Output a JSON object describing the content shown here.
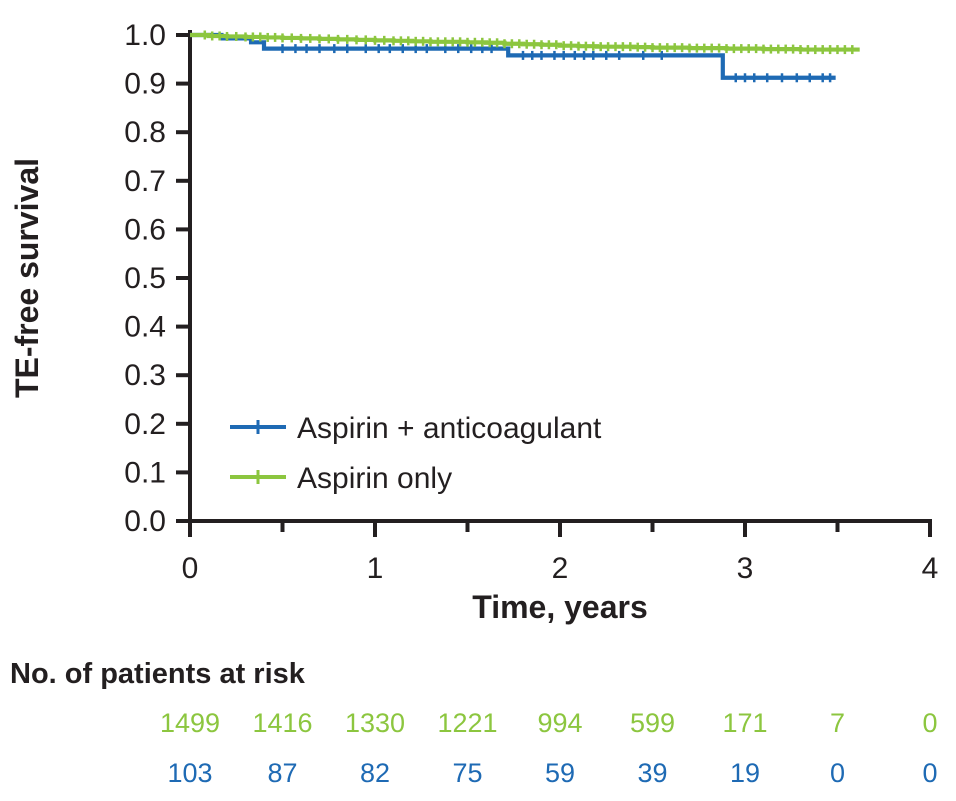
{
  "chart_data": {
    "type": "line",
    "subtype": "kaplan-meier-step",
    "title": "",
    "xlabel": "Time, years",
    "ylabel": "TE-free survival",
    "xlim": [
      0,
      4
    ],
    "ylim": [
      0.0,
      1.0
    ],
    "grid": false,
    "legend_position": "inside-lower-left",
    "x_ticks_major": [
      {
        "v": 0,
        "label": "0"
      },
      {
        "v": 1,
        "label": "1"
      },
      {
        "v": 2,
        "label": "2"
      },
      {
        "v": 3,
        "label": "3"
      },
      {
        "v": 4,
        "label": "4"
      }
    ],
    "x_ticks_minor": [
      0.5,
      1.5,
      2.5,
      3.5
    ],
    "y_ticks": [
      {
        "v": 1.0,
        "label": "1.0"
      },
      {
        "v": 0.9,
        "label": "0.9"
      },
      {
        "v": 0.8,
        "label": "0.8"
      },
      {
        "v": 0.7,
        "label": "0.7"
      },
      {
        "v": 0.6,
        "label": "0.6"
      },
      {
        "v": 0.5,
        "label": "0.5"
      },
      {
        "v": 0.4,
        "label": "0.4"
      },
      {
        "v": 0.3,
        "label": "0.3"
      },
      {
        "v": 0.2,
        "label": "0.2"
      },
      {
        "v": 0.1,
        "label": "0.1"
      },
      {
        "v": 0.0,
        "label": "0.0"
      }
    ],
    "series": [
      {
        "name": "Aspirin + anticoagulant",
        "color": "#1E6AB4",
        "steps": [
          [
            0,
            1.0
          ],
          [
            0.17,
            0.993
          ],
          [
            0.33,
            0.985
          ],
          [
            0.4,
            0.972
          ],
          [
            1.72,
            0.958
          ],
          [
            2.88,
            0.912
          ],
          [
            3.49,
            0.912
          ]
        ],
        "censors": [
          0.5,
          0.57,
          0.63,
          0.7,
          0.78,
          0.85,
          0.95,
          1.02,
          1.08,
          1.15,
          1.22,
          1.28,
          1.38,
          1.45,
          1.52,
          1.58,
          1.63,
          1.8,
          1.85,
          1.9,
          1.97,
          2.02,
          2.08,
          2.13,
          2.18,
          2.25,
          2.32,
          2.45,
          2.55,
          2.95,
          3.0,
          3.05,
          3.12,
          3.2,
          3.28,
          3.35,
          3.42,
          3.46
        ]
      },
      {
        "name": "Aspirin only",
        "color": "#8CC63F",
        "steps": [
          [
            0,
            1.0
          ],
          [
            0.1,
            0.998
          ],
          [
            0.2,
            0.997
          ],
          [
            0.3,
            0.996
          ],
          [
            0.4,
            0.995
          ],
          [
            0.5,
            0.994
          ],
          [
            0.6,
            0.993
          ],
          [
            0.7,
            0.992
          ],
          [
            0.8,
            0.991
          ],
          [
            0.9,
            0.99
          ],
          [
            1.0,
            0.989
          ],
          [
            1.1,
            0.988
          ],
          [
            1.2,
            0.987
          ],
          [
            1.3,
            0.986
          ],
          [
            1.5,
            0.985
          ],
          [
            1.6,
            0.984
          ],
          [
            1.7,
            0.982
          ],
          [
            1.8,
            0.981
          ],
          [
            1.9,
            0.98
          ],
          [
            2.0,
            0.978
          ],
          [
            2.1,
            0.977
          ],
          [
            2.2,
            0.976
          ],
          [
            2.4,
            0.975
          ],
          [
            2.5,
            0.974
          ],
          [
            2.7,
            0.973
          ],
          [
            2.9,
            0.972
          ],
          [
            3.1,
            0.971
          ],
          [
            3.3,
            0.97
          ],
          [
            3.62,
            0.97
          ]
        ],
        "censors": [
          0.08,
          0.12,
          0.16,
          0.2,
          0.25,
          0.3,
          0.34,
          0.38,
          0.42,
          0.46,
          0.5,
          0.55,
          0.6,
          0.65,
          0.7,
          0.75,
          0.8,
          0.85,
          0.9,
          0.95,
          1.0,
          1.05,
          1.1,
          1.14,
          1.18,
          1.22,
          1.26,
          1.3,
          1.34,
          1.38,
          1.42,
          1.46,
          1.5,
          1.54,
          1.58,
          1.62,
          1.66,
          1.7,
          1.74,
          1.78,
          1.82,
          1.86,
          1.9,
          1.94,
          1.98,
          2.02,
          2.06,
          2.1,
          2.14,
          2.18,
          2.22,
          2.26,
          2.3,
          2.34,
          2.38,
          2.42,
          2.46,
          2.5,
          2.54,
          2.58,
          2.62,
          2.66,
          2.7,
          2.74,
          2.78,
          2.82,
          2.86,
          2.9,
          2.94,
          2.98,
          3.02,
          3.06,
          3.1,
          3.14,
          3.18,
          3.22,
          3.26,
          3.3,
          3.34,
          3.38,
          3.42,
          3.46,
          3.5,
          3.54,
          3.58
        ]
      }
    ]
  },
  "risk_table": {
    "heading": "No. of patients at risk",
    "times": [
      0,
      0.5,
      1,
      1.5,
      2,
      2.5,
      3,
      3.5,
      4
    ],
    "rows": [
      {
        "series": "Aspirin only",
        "color": "#8CC63F",
        "counts": [
          "1499",
          "1416",
          "1330",
          "1221",
          "994",
          "599",
          "171",
          "7",
          "0"
        ]
      },
      {
        "series": "Aspirin + anticoagulant",
        "color": "#1E6AB4",
        "counts": [
          "103",
          "87",
          "82",
          "75",
          "59",
          "39",
          "19",
          "0",
          "0"
        ]
      }
    ]
  }
}
